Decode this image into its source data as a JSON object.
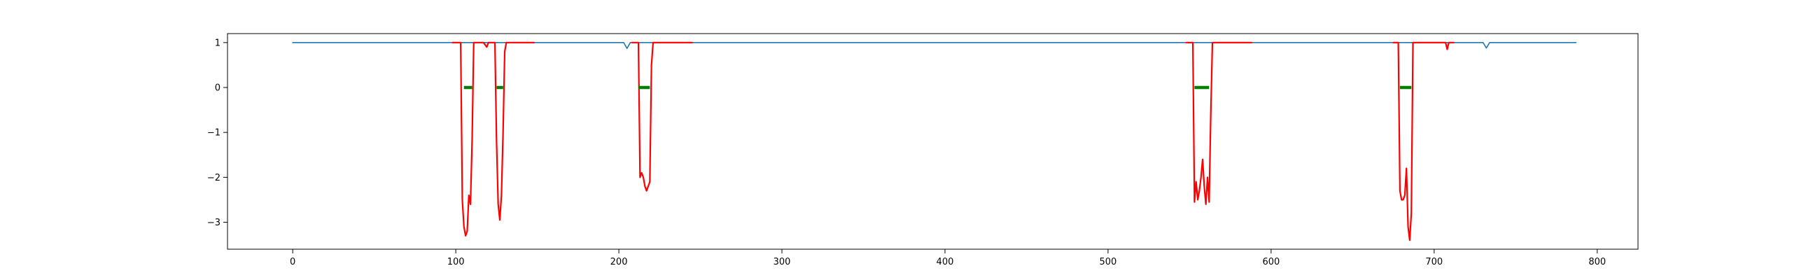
{
  "chart_data": {
    "type": "line",
    "title": "",
    "xlabel": "",
    "ylabel": "",
    "xlim": [
      -40,
      825
    ],
    "ylim": [
      -3.6,
      1.2
    ],
    "grid": false,
    "x_ticks": [
      0,
      100,
      200,
      300,
      400,
      500,
      600,
      700,
      800
    ],
    "y_ticks": [
      1,
      0,
      -1,
      -2,
      -3
    ],
    "x_tick_labels": [
      "0",
      "100",
      "200",
      "300",
      "400",
      "500",
      "600",
      "700",
      "800"
    ],
    "y_tick_labels": [
      "1",
      "0",
      "−1",
      "−2",
      "−3"
    ],
    "colors": {
      "blue": "#1f77b4",
      "red": "#ff0000",
      "green": "#008000",
      "axes": "#000000"
    },
    "series": [
      {
        "color": "#1f77b4",
        "x": [
          0,
          203,
          205,
          207,
          730,
          732,
          734,
          787
        ],
        "y": [
          1,
          1,
          0.87,
          1,
          1,
          0.88,
          1,
          1
        ]
      },
      {
        "color": "#ff0000",
        "x": [
          98,
          103,
          104,
          105,
          106,
          107,
          108,
          109,
          110,
          111,
          112,
          113,
          114,
          117,
          119,
          120,
          122,
          124,
          125,
          126,
          127,
          128,
          129,
          130,
          131,
          132,
          133,
          135,
          148
        ],
        "y": [
          1,
          1,
          -2.5,
          -3.1,
          -3.3,
          -3.2,
          -2.4,
          -2.6,
          -1.2,
          1,
          1,
          1,
          1,
          1,
          0.9,
          1,
          1,
          1,
          -1.2,
          -2.6,
          -2.95,
          -2.4,
          -1.0,
          0.8,
          1,
          1,
          1,
          1,
          1
        ]
      },
      {
        "color": "#ff0000",
        "x": [
          208,
          212,
          213,
          214,
          215,
          216,
          217,
          218,
          219,
          220,
          221,
          222,
          225,
          245
        ],
        "y": [
          1,
          1,
          -2.0,
          -1.9,
          -2.0,
          -2.2,
          -2.3,
          -2.2,
          -2.1,
          0.5,
          1,
          1,
          1,
          1
        ]
      },
      {
        "color": "#ff0000",
        "x": [
          548,
          552,
          553,
          554,
          555,
          556,
          557,
          558,
          559,
          560,
          561,
          562,
          563,
          564,
          565,
          566,
          568,
          575,
          588
        ],
        "y": [
          1,
          1,
          -2.55,
          -2.1,
          -2.5,
          -2.3,
          -2.0,
          -1.6,
          -2.2,
          -2.6,
          -2.0,
          -2.55,
          -0.6,
          1,
          1,
          1,
          1,
          1,
          1
        ]
      },
      {
        "color": "#ff0000",
        "x": [
          675,
          678,
          679,
          680,
          681,
          682,
          683,
          684,
          685,
          686,
          687,
          688,
          690,
          700,
          705,
          707,
          708,
          709,
          710,
          712
        ],
        "y": [
          1,
          1,
          -2.3,
          -2.5,
          -2.5,
          -2.4,
          -1.8,
          -3.1,
          -3.4,
          -2.8,
          1,
          1,
          1,
          1,
          1,
          1,
          0.85,
          1,
          1,
          1
        ]
      },
      {
        "color": "#008000",
        "segments": [
          [
            105,
            110
          ],
          [
            125,
            129
          ],
          [
            212,
            219
          ],
          [
            553,
            562
          ],
          [
            679,
            686
          ]
        ],
        "y": 0
      }
    ]
  }
}
